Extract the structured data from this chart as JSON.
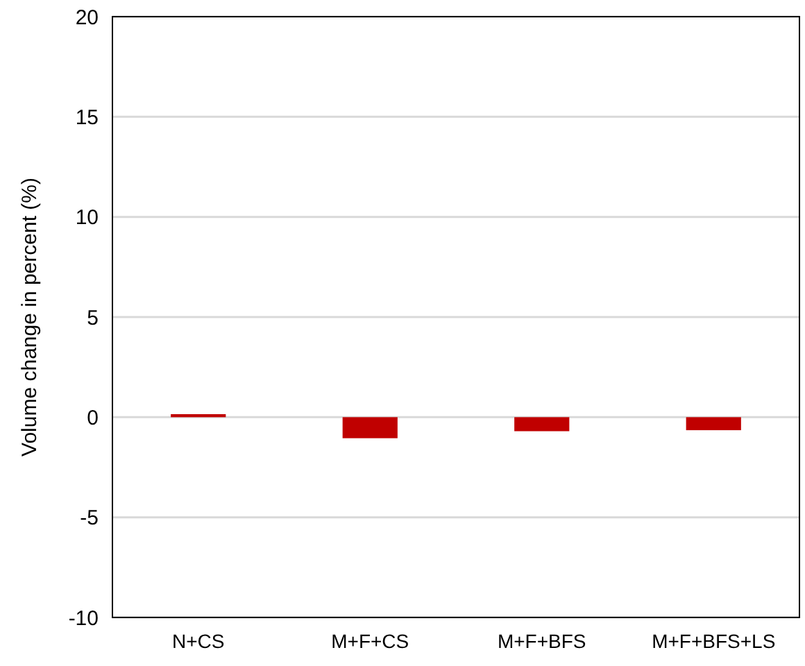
{
  "chart_data": {
    "type": "bar",
    "ylabel": "Volume change in percent (%)",
    "categories": [
      "N+CS",
      "M+F+CS",
      "M+F+BFS",
      "M+F+BFS+LS"
    ],
    "values": [
      0.15,
      -1.05,
      -0.7,
      -0.65
    ],
    "color": "#c00000",
    "ylim": [
      -10,
      20
    ],
    "yticks": [
      -10,
      -5,
      0,
      5,
      10,
      15,
      20
    ],
    "grid": "y"
  }
}
